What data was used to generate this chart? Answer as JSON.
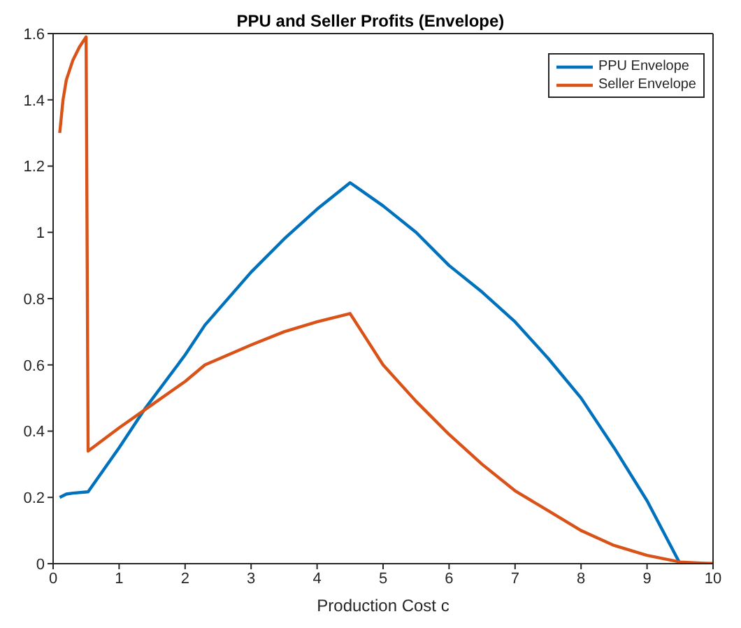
{
  "chart_data": {
    "type": "line",
    "title": "PPU and Seller Profits (Envelope)",
    "xlabel": "Production Cost c",
    "xlim": [
      0,
      10
    ],
    "xticks": [
      0,
      1,
      2,
      3,
      4,
      5,
      6,
      7,
      8,
      9,
      10
    ],
    "ylim": [
      0,
      1.6
    ],
    "yticks": [
      0,
      0.2,
      0.4,
      0.6,
      0.8,
      1,
      1.2,
      1.4,
      1.6
    ],
    "grid": false,
    "legend": "top right",
    "marker": "none",
    "line_style": "solid",
    "series": [
      {
        "name": "PPU Envelope",
        "color": "#0072bd",
        "x": [
          0.1,
          0.2,
          0.3,
          0.53,
          1,
          1.4,
          2,
          2.3,
          3,
          3.5,
          4,
          4.5,
          5,
          5.5,
          6,
          6.5,
          7,
          7.5,
          8,
          8.5,
          9,
          9.5,
          10
        ],
        "values": [
          0.2,
          0.21,
          0.213,
          0.217,
          0.35,
          0.47,
          0.63,
          0.72,
          0.88,
          0.98,
          1.07,
          1.15,
          1.08,
          1.0,
          0.9,
          0.82,
          0.73,
          0.62,
          0.5,
          0.35,
          0.19,
          0,
          0
        ]
      },
      {
        "name": "Seller Envelope",
        "color": "#d95319",
        "x": [
          0.1,
          0.15,
          0.2,
          0.3,
          0.4,
          0.5,
          0.53,
          1,
          1.5,
          2,
          2.3,
          3,
          3.5,
          4,
          4.5,
          5,
          5.5,
          6,
          6.5,
          7,
          7.5,
          8,
          8.5,
          9,
          9.5,
          10
        ],
        "values": [
          1.3,
          1.4,
          1.46,
          1.52,
          1.56,
          1.59,
          0.34,
          0.41,
          0.48,
          0.55,
          0.6,
          0.66,
          0.7,
          0.73,
          0.755,
          0.6,
          0.49,
          0.39,
          0.3,
          0.22,
          0.16,
          0.1,
          0.055,
          0.025,
          0.005,
          0
        ]
      }
    ]
  }
}
